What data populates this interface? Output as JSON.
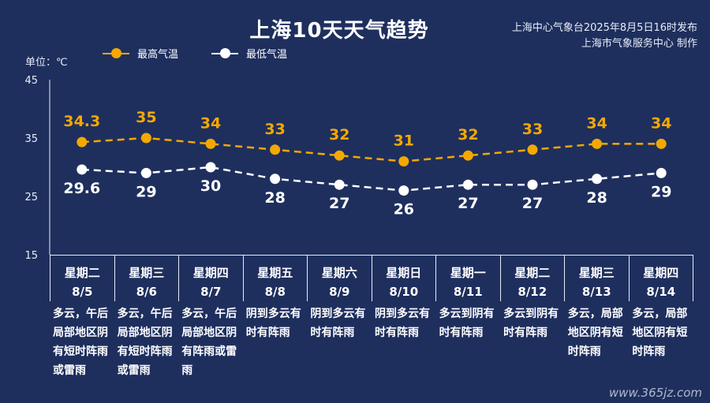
{
  "title": "上海10天天气趋势",
  "publisher": {
    "line1": "上海中心气象台2025年8月5日16时发布",
    "line2": "上海市气象服务中心 制作"
  },
  "unit": "单位：℃",
  "colors": {
    "background": "#1e2f5e",
    "high": "#f5a800",
    "low": "#ffffff",
    "grid": "#e8ecf5"
  },
  "chart_data": {
    "type": "line",
    "ylim": [
      15,
      45
    ],
    "yticks": [
      "15",
      "25",
      "35",
      "45"
    ],
    "categories": [
      "8/5",
      "8/6",
      "8/7",
      "8/8",
      "8/9",
      "8/10",
      "8/11",
      "8/12",
      "8/13",
      "8/14"
    ],
    "series": [
      {
        "name": "最高气温",
        "values": [
          34.3,
          35,
          34,
          33,
          32,
          31,
          32,
          33,
          34,
          34
        ],
        "labels": [
          "34.3",
          "35",
          "34",
          "33",
          "32",
          "31",
          "32",
          "33",
          "34",
          "34"
        ]
      },
      {
        "name": "最低气温",
        "values": [
          29.6,
          29,
          30,
          28,
          27,
          26,
          27,
          27,
          28,
          29
        ],
        "labels": [
          "29.6",
          "29",
          "30",
          "28",
          "27",
          "26",
          "27",
          "27",
          "28",
          "29"
        ]
      }
    ]
  },
  "days": [
    {
      "weekday": "星期二",
      "date": "8/5",
      "condition": "多云，午后局部地区阴有短时阵雨或雷雨"
    },
    {
      "weekday": "星期三",
      "date": "8/6",
      "condition": "多云，午后局部地区阴有短时阵雨或雷雨"
    },
    {
      "weekday": "星期四",
      "date": "8/7",
      "condition": "多云，午后局部地区阴有阵雨或雷雨"
    },
    {
      "weekday": "星期五",
      "date": "8/8",
      "condition": "阴到多云有时有阵雨"
    },
    {
      "weekday": "星期六",
      "date": "8/9",
      "condition": "阴到多云有时有阵雨"
    },
    {
      "weekday": "星期日",
      "date": "8/10",
      "condition": "阴到多云有时有阵雨"
    },
    {
      "weekday": "星期一",
      "date": "8/11",
      "condition": "多云到阴有时有阵雨"
    },
    {
      "weekday": "星期二",
      "date": "8/12",
      "condition": "多云到阴有时有阵雨"
    },
    {
      "weekday": "星期三",
      "date": "8/13",
      "condition": "多云，局部地区阴有短时阵雨"
    },
    {
      "weekday": "星期四",
      "date": "8/14",
      "condition": "多云，局部地区阴有短时阵雨"
    }
  ],
  "watermark": "www.365jz.com"
}
